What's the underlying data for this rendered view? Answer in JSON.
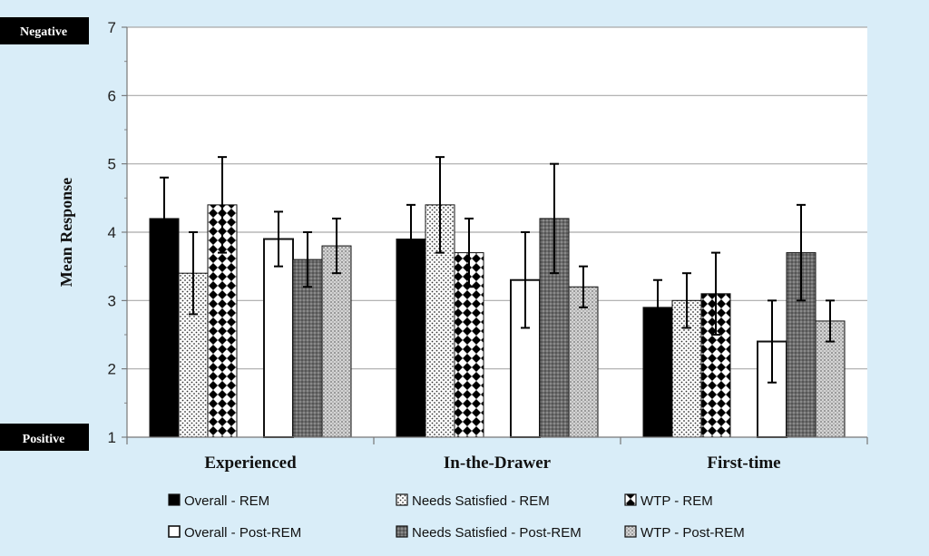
{
  "chart_data": {
    "type": "bar",
    "title": "",
    "xlabel": "",
    "ylabel": "Mean Response",
    "ylim": [
      1,
      7
    ],
    "yticks": [
      1,
      2,
      3,
      4,
      5,
      6,
      7
    ],
    "grid": true,
    "scale_labels": {
      "top": "Negative",
      "bottom": "Positive"
    },
    "categories": [
      "Experienced",
      "In-the-Drawer",
      "First-time"
    ],
    "series": [
      {
        "name": "Overall - REM",
        "pattern": "solid-black",
        "values": [
          4.2,
          3.9,
          2.9
        ],
        "error_low": [
          3.7,
          3.4,
          2.5
        ],
        "error_high": [
          4.8,
          4.4,
          3.3
        ]
      },
      {
        "name": "Needs Satisfied - REM",
        "pattern": "fine-dots",
        "values": [
          3.4,
          4.4,
          3.0
        ],
        "error_low": [
          2.8,
          3.7,
          2.6
        ],
        "error_high": [
          4.0,
          5.1,
          3.4
        ]
      },
      {
        "name": "WTP - REM",
        "pattern": "diamonds",
        "values": [
          4.4,
          3.7,
          3.1
        ],
        "error_low": [
          3.7,
          3.2,
          2.5
        ],
        "error_high": [
          5.1,
          4.2,
          3.7
        ]
      },
      {
        "name": "Overall - Post-REM",
        "pattern": "white",
        "values": [
          3.9,
          3.3,
          2.4
        ],
        "error_low": [
          3.5,
          2.6,
          1.8
        ],
        "error_high": [
          4.3,
          4.0,
          3.0
        ]
      },
      {
        "name": "Needs Satisfied - Post-REM",
        "pattern": "dark-gray-dots",
        "values": [
          3.6,
          4.2,
          3.7
        ],
        "error_low": [
          3.2,
          3.4,
          3.0
        ],
        "error_high": [
          4.0,
          5.0,
          4.4
        ]
      },
      {
        "name": "WTP - Post-REM",
        "pattern": "light-crosshatch",
        "values": [
          3.8,
          3.2,
          2.7
        ],
        "error_low": [
          3.4,
          2.9,
          2.4
        ],
        "error_high": [
          4.2,
          3.5,
          3.0
        ]
      }
    ],
    "legend_position": "bottom"
  },
  "colors": {
    "background": "#d9edf8",
    "grid": "#a9a9a9",
    "bar_outline": "#111111"
  }
}
